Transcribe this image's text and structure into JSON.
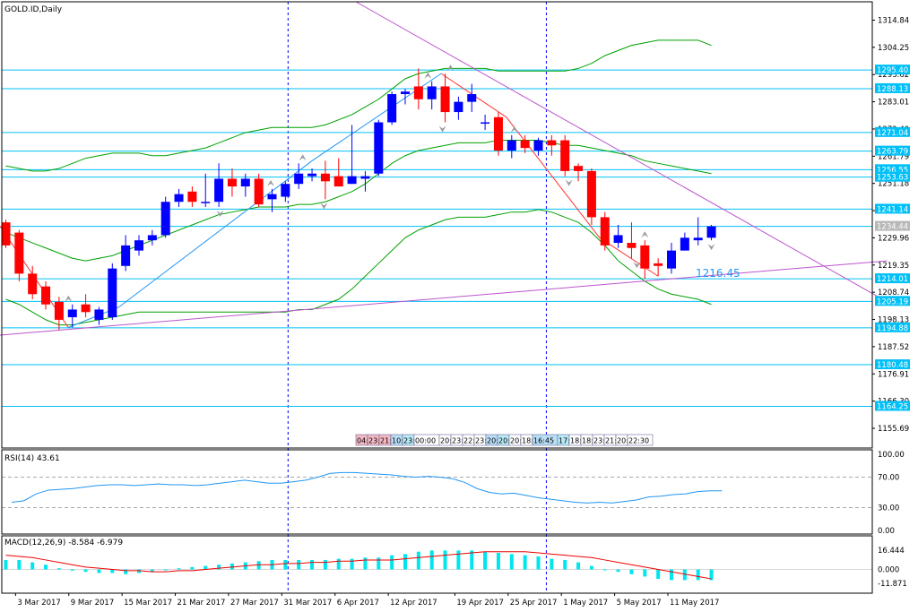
{
  "chart_data": {
    "type": "candlestick",
    "title": "GOLD.ID,Daily",
    "price_axis": {
      "range": [
        1148,
        1322
      ],
      "ticks": [
        1314.84,
        1304.25,
        1293.62,
        1283.01,
        1272.4,
        1261.79,
        1251.18,
        1240.56,
        1229.96,
        1219.35,
        1208.74,
        1198.13,
        1187.52,
        1176.91,
        1166.3,
        1155.69
      ],
      "ticks_text": [
        "1314.84",
        "1304.25",
        "1293.62",
        "1283.01",
        "1272.40",
        "1261.79",
        "1251.18",
        "1240.56",
        "1229.96",
        "1219.35",
        "1208.74",
        "1198.13",
        "1187.52",
        "1176.91",
        "1166.30",
        "1155.69"
      ]
    },
    "date_axis": [
      "3 Mar 2017",
      "9 Mar 2017",
      "15 Mar 2017",
      "21 Mar 2017",
      "27 Mar 2017",
      "31 Mar 2017",
      "6 Apr 2017",
      "12 Apr 2017",
      "19 Apr 2017",
      "25 Apr 2017",
      "1 May 2017",
      "5 May 2017",
      "11 May 2017"
    ],
    "candles": [
      {
        "date": "2 Mar 2017",
        "o": 1236.0,
        "h": 1237.0,
        "l": 1226.0,
        "c": 1227.0
      },
      {
        "date": "3 Mar 2017",
        "o": 1232.0,
        "h": 1233.0,
        "l": 1213.0,
        "c": 1216.0
      },
      {
        "date": "6 Mar 2017",
        "o": 1216.0,
        "h": 1219.0,
        "l": 1206.0,
        "c": 1208.0
      },
      {
        "date": "7 Mar 2017",
        "o": 1211.0,
        "h": 1213.0,
        "l": 1202.0,
        "c": 1204.0
      },
      {
        "date": "8 Mar 2017",
        "o": 1205.0,
        "h": 1207.0,
        "l": 1194.0,
        "c": 1198.0
      },
      {
        "date": "9 Mar 2017",
        "o": 1199.0,
        "h": 1204.0,
        "l": 1195.0,
        "c": 1202.0
      },
      {
        "date": "10 Mar 2017",
        "o": 1204.0,
        "h": 1208.0,
        "l": 1199.0,
        "c": 1201.0
      },
      {
        "date": "13 Mar 2017",
        "o": 1198.0,
        "h": 1203.0,
        "l": 1196.0,
        "c": 1202.0
      },
      {
        "date": "14 Mar 2017",
        "o": 1199.0,
        "h": 1220.0,
        "l": 1198.0,
        "c": 1218.0
      },
      {
        "date": "15 Mar 2017",
        "o": 1219.0,
        "h": 1231.0,
        "l": 1217.0,
        "c": 1227.0
      },
      {
        "date": "16 Mar 2017",
        "o": 1225.0,
        "h": 1231.0,
        "l": 1223.0,
        "c": 1229.0
      },
      {
        "date": "17 Mar 2017",
        "o": 1229.0,
        "h": 1233.0,
        "l": 1227.0,
        "c": 1231.0
      },
      {
        "date": "20 Mar 2017",
        "o": 1231.0,
        "h": 1246.0,
        "l": 1230.0,
        "c": 1244.0
      },
      {
        "date": "21 Mar 2017",
        "o": 1244.0,
        "h": 1249.0,
        "l": 1242.0,
        "c": 1247.0
      },
      {
        "date": "22 Mar 2017",
        "o": 1248.0,
        "h": 1250.0,
        "l": 1242.0,
        "c": 1244.0
      },
      {
        "date": "23 Mar 2017",
        "o": 1244.0,
        "h": 1255.0,
        "l": 1242.0,
        "c": 1244.0
      },
      {
        "date": "24 Mar 2017",
        "o": 1244.0,
        "h": 1259.0,
        "l": 1242.0,
        "c": 1253.0
      },
      {
        "date": "27 Mar 2017",
        "o": 1253.0,
        "h": 1257.0,
        "l": 1246.0,
        "c": 1250.0
      },
      {
        "date": "28 Mar 2017",
        "o": 1250.0,
        "h": 1255.0,
        "l": 1246.0,
        "c": 1253.0
      },
      {
        "date": "29 Mar 2017",
        "o": 1253.0,
        "h": 1255.0,
        "l": 1242.0,
        "c": 1243.0
      },
      {
        "date": "30 Mar 2017",
        "o": 1245.0,
        "h": 1249.0,
        "l": 1240.0,
        "c": 1247.0
      },
      {
        "date": "31 Mar 2017",
        "o": 1246.0,
        "h": 1252.0,
        "l": 1244.0,
        "c": 1251.0
      },
      {
        "date": "3 Apr 2017",
        "o": 1251.0,
        "h": 1259.0,
        "l": 1249.0,
        "c": 1255.0
      },
      {
        "date": "4 Apr 2017",
        "o": 1254.0,
        "h": 1257.0,
        "l": 1252.0,
        "c": 1255.0
      },
      {
        "date": "5 Apr 2017",
        "o": 1255.0,
        "h": 1260.0,
        "l": 1245.0,
        "c": 1252.0
      },
      {
        "date": "6 Apr 2017",
        "o": 1254.0,
        "h": 1261.0,
        "l": 1250.0,
        "c": 1250.0
      },
      {
        "date": "7 Apr 2017",
        "o": 1251.0,
        "h": 1274.0,
        "l": 1251.0,
        "c": 1254.0
      },
      {
        "date": "10 Apr 2017",
        "o": 1253.0,
        "h": 1256.0,
        "l": 1248.0,
        "c": 1254.0
      },
      {
        "date": "11 Apr 2017",
        "o": 1255.0,
        "h": 1276.0,
        "l": 1254.0,
        "c": 1275.0
      },
      {
        "date": "12 Apr 2017",
        "o": 1275.0,
        "h": 1287.0,
        "l": 1274.0,
        "c": 1286.0
      },
      {
        "date": "13 Apr 2017",
        "o": 1286.0,
        "h": 1288.0,
        "l": 1282.0,
        "c": 1287.0
      },
      {
        "date": "14 Apr 2017",
        "o": 1289.0,
        "h": 1296.0,
        "l": 1280.0,
        "c": 1284.0
      },
      {
        "date": "17 Apr 2017",
        "o": 1284.0,
        "h": 1291.0,
        "l": 1280.0,
        "c": 1289.0
      },
      {
        "date": "18 Apr 2017",
        "o": 1289.0,
        "h": 1294.0,
        "l": 1275.0,
        "c": 1279.0
      },
      {
        "date": "19 Apr 2017",
        "o": 1279.0,
        "h": 1285.0,
        "l": 1276.0,
        "c": 1283.0
      },
      {
        "date": "20 Apr 2017",
        "o": 1283.0,
        "h": 1290.0,
        "l": 1279.0,
        "c": 1286.0
      },
      {
        "date": "21 Apr 2017",
        "o": 1275.0,
        "h": 1278.0,
        "l": 1272.0,
        "c": 1275.0
      },
      {
        "date": "24 Apr 2017",
        "o": 1277.0,
        "h": 1279.0,
        "l": 1262.0,
        "c": 1264.0
      },
      {
        "date": "25 Apr 2017",
        "o": 1264.0,
        "h": 1270.0,
        "l": 1261.0,
        "c": 1268.0
      },
      {
        "date": "26 Apr 2017",
        "o": 1268.0,
        "h": 1270.0,
        "l": 1263.0,
        "c": 1265.0
      },
      {
        "date": "27 Apr 2017",
        "o": 1264.0,
        "h": 1269.0,
        "l": 1262.0,
        "c": 1268.0
      },
      {
        "date": "28 Apr 2017",
        "o": 1268.0,
        "h": 1270.0,
        "l": 1262.0,
        "c": 1266.0
      },
      {
        "date": "1 May 2017",
        "o": 1268.0,
        "h": 1270.0,
        "l": 1254.0,
        "c": 1256.0
      },
      {
        "date": "2 May 2017",
        "o": 1258.0,
        "h": 1259.0,
        "l": 1252.0,
        "c": 1256.0
      },
      {
        "date": "3 May 2017",
        "o": 1256.0,
        "h": 1257.0,
        "l": 1235.0,
        "c": 1238.0
      },
      {
        "date": "4 May 2017",
        "o": 1238.0,
        "h": 1240.0,
        "l": 1225.0,
        "c": 1227.0
      },
      {
        "date": "5 May 2017",
        "o": 1228.0,
        "h": 1235.0,
        "l": 1226.0,
        "c": 1231.0
      },
      {
        "date": "8 May 2017",
        "o": 1228.0,
        "h": 1236.0,
        "l": 1222.0,
        "c": 1226.0
      },
      {
        "date": "9 May 2017",
        "o": 1227.0,
        "h": 1229.0,
        "l": 1214.0,
        "c": 1218.0
      },
      {
        "date": "10 May 2017",
        "o": 1220.0,
        "h": 1222.0,
        "l": 1215.0,
        "c": 1219.0
      },
      {
        "date": "11 May 2017",
        "o": 1218.0,
        "h": 1228.0,
        "l": 1216.0,
        "c": 1225.0
      },
      {
        "date": "12 May 2017",
        "o": 1225.0,
        "h": 1232.0,
        "l": 1225.0,
        "c": 1230.0
      },
      {
        "date": "15 May 2017",
        "o": 1229.0,
        "h": 1238.0,
        "l": 1227.0,
        "c": 1230.0
      },
      {
        "date": "16 May 2017",
        "o": 1230.0,
        "h": 1235.0,
        "l": 1229.0,
        "c": 1234.44
      }
    ],
    "bollinger": {
      "upper": [
        1258,
        1257,
        1256,
        1256,
        1257,
        1259,
        1261,
        1262,
        1263,
        1263,
        1263,
        1262,
        1262,
        1263,
        1264,
        1265,
        1267,
        1269,
        1271,
        1272,
        1273,
        1273,
        1273,
        1273,
        1274,
        1276,
        1278,
        1281,
        1284,
        1288,
        1292,
        1294,
        1295,
        1296,
        1296,
        1296,
        1296,
        1295,
        1295,
        1295,
        1295,
        1295,
        1295,
        1296,
        1298,
        1301,
        1303,
        1305,
        1306,
        1307,
        1307,
        1307,
        1307,
        1305
      ],
      "middle": [
        1232,
        1230,
        1228,
        1226,
        1224,
        1222,
        1221,
        1222,
        1223,
        1225,
        1227,
        1229,
        1231,
        1233,
        1235,
        1237,
        1239,
        1240,
        1241,
        1242,
        1242,
        1242,
        1243,
        1243,
        1244,
        1246,
        1248,
        1251,
        1255,
        1259,
        1262,
        1264,
        1265,
        1266,
        1267,
        1267,
        1267,
        1268,
        1268,
        1268,
        1268,
        1267,
        1266,
        1266,
        1265,
        1264,
        1263,
        1262,
        1260,
        1259,
        1258,
        1257,
        1256,
        1255
      ],
      "lower": [
        1206,
        1204,
        1201,
        1198,
        1196,
        1196,
        1197,
        1198,
        1199,
        1200,
        1201,
        1201,
        1201,
        1201,
        1201,
        1201,
        1201,
        1201,
        1201,
        1201,
        1201,
        1201,
        1202,
        1202,
        1204,
        1206,
        1210,
        1215,
        1220,
        1225,
        1230,
        1233,
        1235,
        1237,
        1238,
        1238,
        1238,
        1239,
        1240,
        1240,
        1241,
        1240,
        1238,
        1236,
        1232,
        1227,
        1221,
        1217,
        1213,
        1210,
        1208,
        1207,
        1206,
        1204
      ]
    },
    "horizontal_levels": [
      1295.4,
      1288.13,
      1271.04,
      1263.79,
      1256.55,
      1253.63,
      1241.14,
      1234.44,
      1214.01,
      1205.19,
      1194.88,
      1180.48,
      1164.25
    ],
    "horizontal_levels_text": [
      "1295.40",
      "1288.13",
      "1271.04",
      "1263.79",
      "1256.55",
      "1253.63",
      "1241.14",
      "1234.44",
      "1214.01",
      "1205.19",
      "1194.88",
      "1180.48",
      "1164.25"
    ],
    "current_price": 1234.44,
    "annotation": "1216.45",
    "trendlines": {
      "resistance": [
        {
          "i": 26.3,
          "p": 1322
        },
        {
          "i": 66.2,
          "p": 1205
        }
      ],
      "support": [
        {
          "i": -0.5,
          "p": 1192
        },
        {
          "i": 66.2,
          "p": 1221
        }
      ],
      "zigzag": [
        {
          "i": -0.5,
          "p": 1235
        },
        {
          "i": 4.7,
          "p": 1195
        },
        {
          "i": 8.5,
          "p": 1203
        },
        {
          "i": 23.0,
          "p": 1260
        },
        {
          "i": 32.7,
          "p": 1294
        },
        {
          "i": 37.6,
          "p": 1277
        },
        {
          "i": 44.6,
          "p": 1230
        },
        {
          "i": 49.0,
          "p": 1215
        }
      ]
    },
    "fractals_up": [
      4.7,
      19.9,
      22.3,
      31.7,
      33.4,
      38.2,
      48.0
    ],
    "fractals_down": [
      16.1,
      23.9,
      32.8,
      42.3,
      47.4,
      53.0
    ],
    "rsi": {
      "label": "RSI(14) 43.61",
      "levels": [
        100,
        70,
        30,
        0
      ],
      "levels_text": [
        "100.00",
        "70.00",
        "30.00",
        "0.00"
      ],
      "values": [
        55,
        50,
        47,
        43,
        40,
        38,
        37,
        37,
        39,
        48,
        53,
        54,
        55,
        57,
        59,
        60,
        60,
        59,
        60,
        61,
        60,
        60,
        59,
        60,
        62,
        64,
        66,
        64,
        62,
        62,
        64,
        66,
        70,
        75,
        76,
        76,
        75,
        74,
        73,
        71,
        70,
        71,
        70,
        68,
        63,
        55,
        50,
        48,
        49,
        46,
        43,
        41,
        39,
        37,
        36,
        37,
        36,
        38,
        40,
        44,
        45,
        47,
        48,
        51,
        52,
        52
      ]
    },
    "rsi_start_index": -6.0,
    "rsi_step": 0.92,
    "macd": {
      "label": "MACD(12,26,9) -8.584 -6.979",
      "ticks": [
        16.444,
        0.0,
        -11.871
      ],
      "ticks_text": [
        "16.444",
        "0.000",
        "-11.871"
      ],
      "histogram": [
        8,
        8,
        6,
        4,
        1,
        -1,
        -2,
        -3,
        -3,
        -4,
        -3,
        -2,
        0,
        1,
        2,
        3,
        4,
        5,
        6,
        7,
        8,
        8,
        8,
        8,
        8,
        9,
        9,
        10,
        10,
        12,
        13,
        15,
        16,
        16,
        16,
        16,
        15,
        14,
        13,
        12,
        11,
        9,
        8,
        6,
        3,
        0,
        -2,
        -4,
        -6,
        -8,
        -9,
        -9,
        -9,
        -9
      ],
      "signal": [
        12,
        11,
        10,
        8,
        6,
        4,
        2,
        1,
        0,
        -1,
        -1,
        -2,
        -2,
        -1,
        -1,
        0,
        1,
        2,
        3,
        4,
        4,
        5,
        5,
        6,
        6,
        7,
        7,
        8,
        8,
        8,
        9,
        10,
        11,
        12,
        13,
        14,
        15,
        15,
        15,
        15,
        14,
        13,
        12,
        11,
        10,
        8,
        6,
        4,
        2,
        0,
        -2,
        -4,
        -6,
        -8
      ]
    },
    "session_bar": [
      "04:",
      "23:",
      "21:",
      "10:",
      "23:",
      "00:00",
      "20:",
      "23:",
      "22:",
      "23:",
      "20:",
      "20:",
      "20:",
      "18:",
      "16:45",
      "17:",
      "18:",
      "18:",
      "23:",
      "21:",
      "20:",
      "22:30"
    ],
    "session_colors": [
      "#f4b8c2",
      "#f4b8c2",
      "#f4b8c2",
      "#b9dff7",
      "#b9eaf7",
      "#ffffff",
      "#ffffff",
      "#ffffff",
      "#ffffff",
      "#ffffff",
      "#b9dff7",
      "#b9eaf7",
      "#ffffff",
      "#ffffff",
      "#b9dff7",
      "#b9eaf7",
      "#ffffff",
      "#ffffff",
      "#ffffff",
      "#ffffff",
      "#ffffff",
      "#ffffff"
    ]
  },
  "colors": {
    "bull": "#0000ff",
    "bear": "#ff0000",
    "level": "#00c0f8",
    "bollinger": "#00a000",
    "trend": "#bb55cc",
    "zigzag_up": "#2196f3",
    "zigzag_down": "#ff3030",
    "rsi": "#2196f3",
    "macd_hist": "#00e5ee",
    "macd_signal": "#ee0000",
    "axis": "#000080",
    "separator": "#0000ff"
  }
}
